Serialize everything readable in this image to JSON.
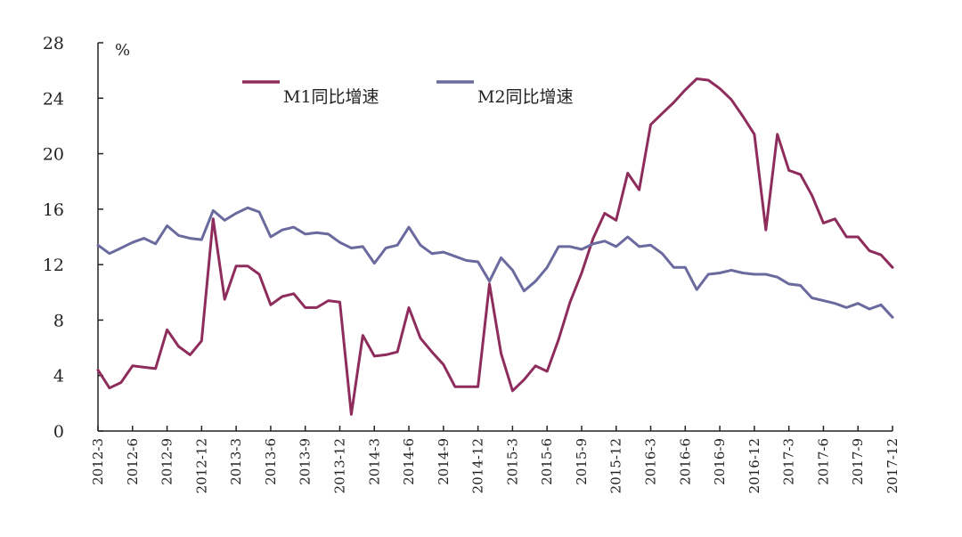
{
  "chart_data": {
    "type": "line",
    "title": "",
    "xlabel": "",
    "ylabel": "%",
    "ylim": [
      0,
      28
    ],
    "yticks": [
      0,
      4,
      8,
      12,
      16,
      20,
      24,
      28
    ],
    "grid": false,
    "legend_position": "top",
    "x": [
      "2012-3",
      "2012-4",
      "2012-5",
      "2012-6",
      "2012-7",
      "2012-8",
      "2012-9",
      "2012-10",
      "2012-11",
      "2012-12",
      "2013-1",
      "2013-2",
      "2013-3",
      "2013-4",
      "2013-5",
      "2013-6",
      "2013-7",
      "2013-8",
      "2013-9",
      "2013-10",
      "2013-11",
      "2013-12",
      "2014-1",
      "2014-2",
      "2014-3",
      "2014-4",
      "2014-5",
      "2014-6",
      "2014-7",
      "2014-8",
      "2014-9",
      "2014-10",
      "2014-11",
      "2014-12",
      "2015-1",
      "2015-2",
      "2015-3",
      "2015-4",
      "2015-5",
      "2015-6",
      "2015-7",
      "2015-8",
      "2015-9",
      "2015-10",
      "2015-11",
      "2015-12",
      "2016-1",
      "2016-2",
      "2016-3",
      "2016-4",
      "2016-5",
      "2016-6",
      "2016-7",
      "2016-8",
      "2016-9",
      "2016-10",
      "2016-11",
      "2016-12",
      "2017-1",
      "2017-2",
      "2017-3",
      "2017-4",
      "2017-5",
      "2017-6",
      "2017-7",
      "2017-8",
      "2017-9",
      "2017-10",
      "2017-11",
      "2017-12"
    ],
    "x_tick_labels": [
      "2012-3",
      "2012-6",
      "2012-9",
      "2012-12",
      "2013-3",
      "2013-6",
      "2013-9",
      "2013-12",
      "2014-3",
      "2014-6",
      "2014-9",
      "2014-12",
      "2015-3",
      "2015-6",
      "2015-9",
      "2015-12",
      "2016-3",
      "2016-6",
      "2016-9",
      "2016-12",
      "2017-3",
      "2017-6",
      "2017-9",
      "2017-12"
    ],
    "series": [
      {
        "name": "M1同比增速",
        "color": "#8e2d5c",
        "values": [
          4.4,
          3.1,
          3.5,
          4.7,
          4.6,
          4.5,
          7.3,
          6.1,
          5.5,
          6.5,
          15.3,
          9.5,
          11.9,
          11.9,
          11.3,
          9.1,
          9.7,
          9.9,
          8.9,
          8.9,
          9.4,
          9.3,
          1.2,
          6.9,
          5.4,
          5.5,
          5.7,
          8.9,
          6.7,
          5.7,
          4.8,
          3.2,
          3.2,
          3.2,
          10.6,
          5.6,
          2.9,
          3.7,
          4.7,
          4.3,
          6.6,
          9.3,
          11.4,
          13.9,
          15.7,
          15.2,
          18.6,
          17.4,
          22.1,
          22.9,
          23.7,
          24.6,
          25.4,
          25.3,
          24.7,
          23.9,
          22.7,
          21.4,
          14.5,
          21.4,
          18.8,
          18.5,
          17.0,
          15.0,
          15.3,
          14.0,
          14.0,
          13.0,
          12.7,
          11.8
        ]
      },
      {
        "name": "M2同比增速",
        "color": "#6a6a9e",
        "values": [
          13.4,
          12.8,
          13.2,
          13.6,
          13.9,
          13.5,
          14.8,
          14.1,
          13.9,
          13.8,
          15.9,
          15.2,
          15.7,
          16.1,
          15.8,
          14.0,
          14.5,
          14.7,
          14.2,
          14.3,
          14.2,
          13.6,
          13.2,
          13.3,
          12.1,
          13.2,
          13.4,
          14.7,
          13.4,
          12.8,
          12.9,
          12.6,
          12.3,
          12.2,
          10.8,
          12.5,
          11.6,
          10.1,
          10.8,
          11.8,
          13.3,
          13.3,
          13.1,
          13.5,
          13.7,
          13.3,
          14.0,
          13.3,
          13.4,
          12.8,
          11.8,
          11.8,
          10.2,
          11.3,
          11.4,
          11.6,
          11.4,
          11.3,
          11.3,
          11.1,
          10.6,
          10.5,
          9.6,
          9.4,
          9.2,
          8.9,
          9.2,
          8.8,
          9.1,
          8.2
        ]
      }
    ]
  }
}
